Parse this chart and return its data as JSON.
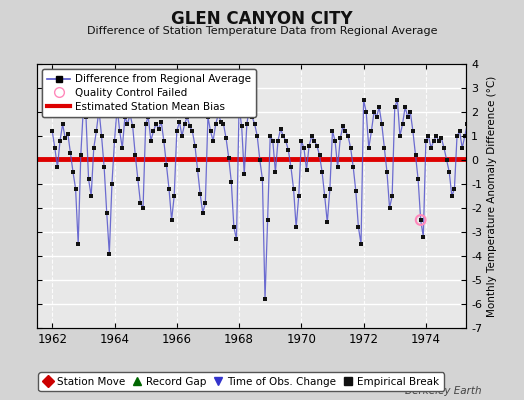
{
  "title": "GLEN CANYON CITY",
  "subtitle": "Difference of Station Temperature Data from Regional Average",
  "ylabel": "Monthly Temperature Anomaly Difference (°C)",
  "bias_value": 0.05,
  "ylim": [
    -7,
    4
  ],
  "yticks": [
    -7,
    -6,
    -5,
    -4,
    -3,
    -2,
    -1,
    0,
    1,
    2,
    3,
    4
  ],
  "xlim": [
    1961.5,
    1975.3
  ],
  "xticks": [
    1962,
    1964,
    1966,
    1968,
    1970,
    1972,
    1974
  ],
  "line_color": "#5555cc",
  "line_color_light": "#aaaaee",
  "marker_color": "#111111",
  "bias_color": "#dd0000",
  "fig_bg_color": "#d4d4d4",
  "plot_bg_color": "#e8e8e8",
  "grid_color": "#ffffff",
  "qc_failed_index": 142,
  "qc_color": "#ff88bb",
  "legend_items": [
    {
      "label": "Difference from Regional Average",
      "line_color": "#4444cc",
      "marker": "s",
      "marker_color": "#000000"
    },
    {
      "label": "Quality Control Failed",
      "color": "#ff88bb"
    },
    {
      "label": "Estimated Station Mean Bias",
      "color": "#dd0000"
    }
  ],
  "bottom_legend": [
    {
      "label": "Station Move",
      "color": "#cc0000",
      "marker": "D"
    },
    {
      "label": "Record Gap",
      "color": "#006600",
      "marker": "^"
    },
    {
      "label": "Time of Obs. Change",
      "color": "#3333cc",
      "marker": "v"
    },
    {
      "label": "Empirical Break",
      "color": "#111111",
      "marker": "s"
    }
  ],
  "watermark": "Berkeley Earth",
  "data": [
    1.2,
    0.5,
    -0.3,
    0.8,
    1.5,
    0.9,
    1.1,
    0.3,
    -0.5,
    -1.2,
    -3.5,
    0.2,
    2.2,
    1.8,
    -0.8,
    -1.5,
    0.5,
    1.2,
    2.1,
    1.0,
    -0.3,
    -2.2,
    -3.9,
    -1.0,
    0.8,
    2.2,
    1.2,
    0.5,
    1.8,
    1.5,
    1.9,
    1.4,
    0.2,
    -0.8,
    -1.8,
    -2.0,
    1.5,
    1.8,
    0.8,
    1.2,
    1.5,
    1.3,
    1.6,
    0.8,
    -0.2,
    -1.2,
    -2.5,
    -1.5,
    1.2,
    1.6,
    1.0,
    1.5,
    1.8,
    1.4,
    1.2,
    0.6,
    -0.4,
    -1.4,
    -2.2,
    -1.8,
    1.8,
    1.2,
    0.8,
    1.5,
    1.9,
    1.6,
    1.5,
    0.9,
    0.1,
    -0.9,
    -2.8,
    -3.3,
    2.2,
    1.4,
    -0.6,
    1.5,
    2.2,
    1.8,
    1.5,
    1.0,
    0.0,
    -0.8,
    -5.8,
    -2.5,
    1.0,
    0.8,
    -0.5,
    0.8,
    1.3,
    1.0,
    0.8,
    0.4,
    -0.3,
    -1.2,
    -2.8,
    -1.5,
    0.8,
    0.5,
    -0.4,
    0.6,
    1.0,
    0.8,
    0.6,
    0.2,
    -0.5,
    -1.5,
    -2.6,
    -1.2,
    1.2,
    0.8,
    -0.3,
    0.9,
    1.4,
    1.2,
    1.0,
    0.5,
    -0.3,
    -1.3,
    -2.8,
    -3.5,
    2.5,
    2.0,
    0.5,
    1.2,
    2.0,
    1.8,
    2.2,
    1.5,
    0.5,
    -0.5,
    -2.0,
    -1.5,
    2.2,
    2.5,
    1.0,
    1.5,
    2.2,
    1.8,
    2.0,
    1.2,
    0.2,
    -0.8,
    -2.5,
    -3.2,
    0.8,
    1.0,
    0.5,
    0.8,
    1.0,
    0.8,
    0.9,
    0.5,
    0.0,
    -0.5,
    -1.5,
    -1.2,
    1.0,
    1.2,
    0.5,
    1.0,
    1.5,
    1.2,
    1.4,
    0.8,
    0.0,
    -0.8,
    -1.8,
    -1.0,
    1.5,
    1.8,
    1.2,
    1.5,
    2.0,
    1.5,
    1.5,
    1.0,
    0.2,
    0.8,
    1.2,
    1.0,
    1.8,
    1.2,
    0.8,
    1.2,
    1.0
  ]
}
